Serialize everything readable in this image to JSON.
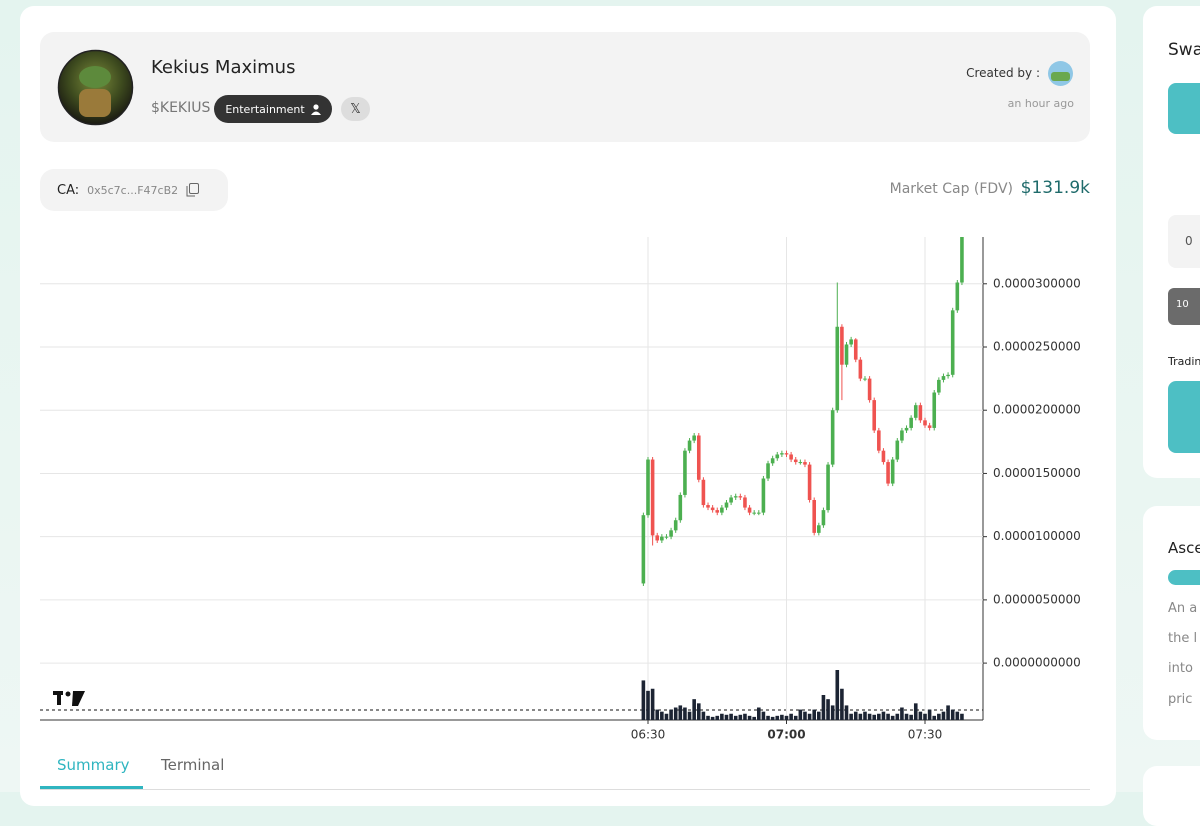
{
  "token": {
    "name": "Kekius Maximus",
    "ticker": "$KEKIUS",
    "category": "Entertainment",
    "social": "𝕏",
    "created_by_label": "Created by :",
    "created_time": "an hour ago",
    "ca_label": "CA:",
    "ca": "0x5c7c...F47cB2",
    "market_cap_label": "Market Cap (FDV)",
    "market_cap": "$131.9k"
  },
  "chart_data": {
    "type": "candlestick",
    "x": [
      "06:29",
      "06:30",
      "06:31",
      "06:32",
      "06:33",
      "06:34",
      "06:35",
      "06:36",
      "06:37",
      "06:38",
      "06:39",
      "06:40",
      "06:41",
      "06:42",
      "06:43",
      "06:44",
      "06:45",
      "06:46",
      "06:47",
      "06:48",
      "06:49",
      "06:50",
      "06:51",
      "06:52",
      "06:53",
      "06:54",
      "06:55",
      "06:56",
      "06:57",
      "06:58",
      "06:59",
      "07:00",
      "07:01",
      "07:02",
      "07:03",
      "07:04",
      "07:05",
      "07:06",
      "07:07",
      "07:08",
      "07:09",
      "07:10",
      "07:11",
      "07:12",
      "07:13",
      "07:14",
      "07:15",
      "07:16",
      "07:17",
      "07:18",
      "07:19",
      "07:20",
      "07:21",
      "07:22",
      "07:23",
      "07:24",
      "07:25",
      "07:26",
      "07:27",
      "07:28",
      "07:29",
      "07:30",
      "07:31",
      "07:32",
      "07:33",
      "07:34",
      "07:35",
      "07:36",
      "07:37",
      "07:38"
    ],
    "open": [
      6.3e-06,
      1.17e-05,
      1.61e-05,
      1.01e-05,
      9.7e-06,
      1e-05,
      1e-05,
      1.05e-05,
      1.13e-05,
      1.33e-05,
      1.68e-05,
      1.76e-05,
      1.8e-05,
      1.45e-05,
      1.25e-05,
      1.23e-05,
      1.21e-05,
      1.19e-05,
      1.23e-05,
      1.27e-05,
      1.31e-05,
      1.32e-05,
      1.31e-05,
      1.23e-05,
      1.19e-05,
      1.19e-05,
      1.19e-05,
      1.46e-05,
      1.58e-05,
      1.62e-05,
      1.65e-05,
      1.66e-05,
      1.65e-05,
      1.61e-05,
      1.59e-05,
      1.59e-05,
      1.57e-05,
      1.29e-05,
      1.03e-05,
      1.09e-05,
      1.21e-05,
      1.57e-05,
      2e-05,
      2.66e-05,
      2.36e-05,
      2.52e-05,
      2.56e-05,
      2.4e-05,
      2.25e-05,
      2.25e-05,
      2.08e-05,
      1.84e-05,
      1.68e-05,
      1.59e-05,
      1.42e-05,
      1.61e-05,
      1.76e-05,
      1.84e-05,
      1.86e-05,
      1.94e-05,
      2.04e-05,
      1.92e-05,
      1.88e-05,
      1.86e-05,
      2.14e-05,
      2.24e-05,
      2.27e-05,
      2.28e-05,
      2.79e-05,
      3.01e-05
    ],
    "high": [
      1.19e-05,
      1.63e-05,
      1.63e-05,
      1.03e-05,
      1.02e-05,
      1.02e-05,
      1.07e-05,
      1.15e-05,
      1.35e-05,
      1.7e-05,
      1.78e-05,
      1.82e-05,
      1.82e-05,
      1.47e-05,
      1.27e-05,
      1.25e-05,
      1.23e-05,
      1.25e-05,
      1.29e-05,
      1.33e-05,
      1.34e-05,
      1.34e-05,
      1.33e-05,
      1.25e-05,
      1.21e-05,
      1.21e-05,
      1.48e-05,
      1.6e-05,
      1.64e-05,
      1.67e-05,
      1.68e-05,
      1.68e-05,
      1.67e-05,
      1.63e-05,
      1.61e-05,
      1.61e-05,
      1.59e-05,
      1.31e-05,
      1.11e-05,
      1.23e-05,
      1.59e-05,
      2.02e-05,
      3.01e-05,
      2.68e-05,
      2.54e-05,
      2.58e-05,
      2.57e-05,
      2.42e-05,
      2.27e-05,
      2.27e-05,
      2.1e-05,
      1.86e-05,
      1.7e-05,
      1.61e-05,
      1.63e-05,
      1.78e-05,
      1.86e-05,
      1.88e-05,
      1.96e-05,
      2.06e-05,
      2.06e-05,
      1.94e-05,
      1.9e-05,
      2.16e-05,
      2.26e-05,
      2.29e-05,
      2.3e-05,
      2.81e-05,
      3.03e-05,
      3.39e-05
    ],
    "low": [
      6.1e-06,
      1.15e-05,
      9.3e-06,
      9.5e-06,
      9.5e-06,
      9.8e-06,
      9.8e-06,
      1.03e-05,
      1.11e-05,
      1.31e-05,
      1.66e-05,
      1.74e-05,
      1.43e-05,
      1.23e-05,
      1.21e-05,
      1.19e-05,
      1.17e-05,
      1.17e-05,
      1.21e-05,
      1.25e-05,
      1.29e-05,
      1.29e-05,
      1.21e-05,
      1.17e-05,
      1.17e-05,
      1.17e-05,
      1.17e-05,
      1.44e-05,
      1.56e-05,
      1.6e-05,
      1.63e-05,
      1.63e-05,
      1.59e-05,
      1.57e-05,
      1.57e-05,
      1.55e-05,
      1.27e-05,
      1.01e-05,
      1.01e-05,
      1.07e-05,
      1.19e-05,
      1.55e-05,
      1.98e-05,
      2.08e-05,
      2.34e-05,
      2.5e-05,
      2.38e-05,
      2.23e-05,
      2.23e-05,
      2.06e-05,
      1.82e-05,
      1.66e-05,
      1.57e-05,
      1.4e-05,
      1.4e-05,
      1.59e-05,
      1.74e-05,
      1.82e-05,
      1.84e-05,
      1.92e-05,
      1.9e-05,
      1.86e-05,
      1.84e-05,
      1.84e-05,
      2.12e-05,
      2.22e-05,
      2.25e-05,
      2.26e-05,
      2.77e-05,
      2.99e-05
    ],
    "close": [
      1.17e-05,
      1.61e-05,
      1.01e-05,
      9.7e-06,
      1e-05,
      1e-05,
      1.05e-05,
      1.13e-05,
      1.33e-05,
      1.68e-05,
      1.76e-05,
      1.8e-05,
      1.45e-05,
      1.25e-05,
      1.23e-05,
      1.21e-05,
      1.19e-05,
      1.23e-05,
      1.27e-05,
      1.31e-05,
      1.32e-05,
      1.31e-05,
      1.23e-05,
      1.19e-05,
      1.19e-05,
      1.19e-05,
      1.46e-05,
      1.58e-05,
      1.62e-05,
      1.65e-05,
      1.66e-05,
      1.65e-05,
      1.61e-05,
      1.59e-05,
      1.59e-05,
      1.57e-05,
      1.29e-05,
      1.03e-05,
      1.09e-05,
      1.21e-05,
      1.57e-05,
      2e-05,
      2.66e-05,
      2.36e-05,
      2.52e-05,
      2.56e-05,
      2.4e-05,
      2.25e-05,
      2.25e-05,
      2.08e-05,
      1.84e-05,
      1.68e-05,
      1.59e-05,
      1.42e-05,
      1.61e-05,
      1.76e-05,
      1.84e-05,
      1.86e-05,
      1.94e-05,
      2.04e-05,
      1.92e-05,
      1.88e-05,
      1.86e-05,
      2.14e-05,
      2.24e-05,
      2.27e-05,
      2.28e-05,
      2.79e-05,
      3.01e-05,
      3.37e-05
    ],
    "volume": [
      38,
      28,
      30,
      10,
      8,
      6,
      10,
      12,
      14,
      12,
      8,
      20,
      16,
      8,
      4,
      3,
      4,
      6,
      5,
      6,
      4,
      5,
      6,
      4,
      3,
      12,
      8,
      4,
      3,
      4,
      5,
      4,
      6,
      4,
      10,
      8,
      6,
      10,
      8,
      24,
      20,
      14,
      48,
      30,
      14,
      6,
      8,
      6,
      8,
      6,
      5,
      6,
      8,
      6,
      4,
      6,
      12,
      6,
      5,
      16,
      8,
      6,
      10,
      4,
      6,
      8,
      14,
      10,
      8,
      6
    ],
    "ylim": [
      -4.5e-06,
      3.37e-05
    ],
    "yticks": [
      {
        "value": 0,
        "label": "0.0000000000"
      },
      {
        "value": 5e-06,
        "label": "0.0000050000"
      },
      {
        "value": 1e-05,
        "label": "0.0000100000"
      },
      {
        "value": 1.5e-05,
        "label": "0.0000150000"
      },
      {
        "value": 2e-05,
        "label": "0.0000200000"
      },
      {
        "value": 2.5e-05,
        "label": "0.0000250000"
      },
      {
        "value": 3e-05,
        "label": "0.0000300000"
      }
    ],
    "xticks": [
      "06:30",
      "07:00",
      "07:30"
    ],
    "up_color": "#4caf50",
    "down_color": "#ef5350",
    "volume_color": "#1c2433",
    "grid": true
  },
  "tabs": [
    "Summary",
    "Terminal"
  ],
  "sidebar": {
    "swap_title": "Swap",
    "input_value": "0",
    "amount_chip": "10",
    "trading_label": "Trading",
    "card_title": "Ascend",
    "card_lines": [
      "An a",
      "the l",
      "into",
      "pric"
    ]
  }
}
